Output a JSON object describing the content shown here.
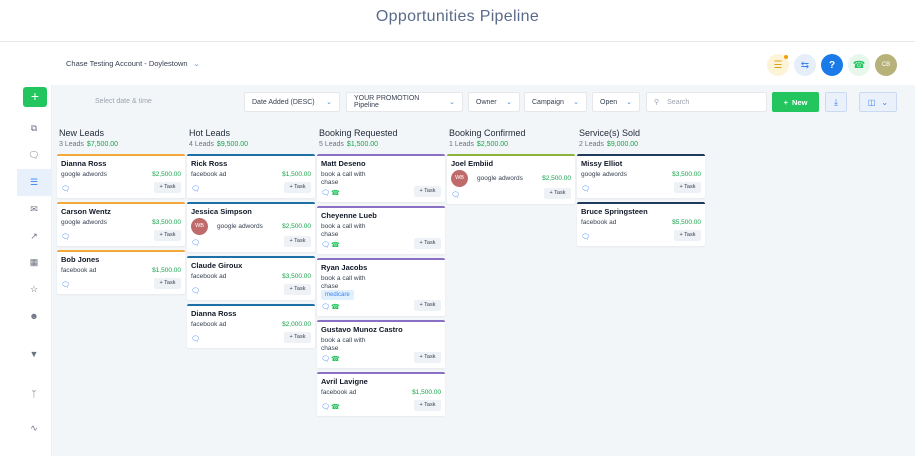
{
  "page_title": "Opportunities Pipeline",
  "account": "Chase Testing Account - Doylestown",
  "header_icons": [
    "list-icon",
    "sync-icon",
    "help-icon",
    "phone-icon"
  ],
  "user_initials": "CB",
  "colors": {
    "accent": "#22c55e",
    "link": "#3b82f6",
    "value": "#16a34a",
    "card_new": "#f2a93b",
    "card_hot": "#1f6fa7",
    "card_booking": "#8a70c4",
    "card_confirmed": "#8fb33a",
    "card_sold": "#1f3b5c"
  },
  "filters": {
    "date_placeholder": "Select date & time",
    "sort": "Date Added (DESC)",
    "pipeline": "YOUR PROMOTION Pipeline",
    "owner": "Owner",
    "campaign": "Campaign",
    "status": "Open",
    "search_placeholder": "Search",
    "new_label": "New"
  },
  "columns": [
    {
      "title": "New Leads",
      "leads": "3 Leads",
      "amount": "$7,500.00",
      "cards": [
        {
          "name": "Dianna Ross",
          "source": "google adwords",
          "value": "$2,500.00",
          "phone": false
        },
        {
          "name": "Carson Wentz",
          "source": "google adwords",
          "value": "$3,500.00",
          "phone": false
        },
        {
          "name": "Bob Jones",
          "source": "facebook ad",
          "value": "$1,500.00",
          "phone": false
        }
      ]
    },
    {
      "title": "Hot Leads",
      "leads": "4 Leads",
      "amount": "$9,500.00",
      "cards": [
        {
          "name": "Rick Ross",
          "source": "facebook ad",
          "value": "$1,500.00",
          "phone": false
        },
        {
          "name": "Jessica Simpson",
          "source": "google adwords",
          "value": "$2,500.00",
          "avatar": "WB",
          "phone": false
        },
        {
          "name": "Claude Giroux",
          "source": "facebook ad",
          "value": "$3,500.00",
          "phone": false
        },
        {
          "name": "Dianna Ross",
          "source": "facebook ad",
          "value": "$2,000.00",
          "phone": false
        }
      ]
    },
    {
      "title": "Booking Requested",
      "leads": "5 Leads",
      "amount": "$1,500.00",
      "cards": [
        {
          "name": "Matt Deseno",
          "source": "book a call with chase",
          "value": "",
          "phone": true
        },
        {
          "name": "Cheyenne Lueb",
          "source": "book a call with chase",
          "value": "",
          "phone": true
        },
        {
          "name": "Ryan Jacobs",
          "source": "book a call with chase",
          "value": "",
          "tag": "medicare",
          "phone": true
        },
        {
          "name": "Gustavo Munoz Castro",
          "source": "book a call with chase",
          "value": "",
          "phone": true
        },
        {
          "name": "Avril Lavigne",
          "source": "facebook ad",
          "value": "$1,500.00",
          "phone": true
        }
      ]
    },
    {
      "title": "Booking Confirmed",
      "leads": "1 Leads",
      "amount": "$2,500.00",
      "cards": [
        {
          "name": "Joel Embiid",
          "source": "google adwords",
          "value": "$2,500.00",
          "avatar": "WB",
          "phone": false
        }
      ]
    },
    {
      "title": "Service(s) Sold",
      "leads": "2 Leads",
      "amount": "$9,000.00",
      "cards": [
        {
          "name": "Missy Elliot",
          "source": "google adwords",
          "value": "$3,500.00",
          "phone": false
        },
        {
          "name": "Bruce Springsteen",
          "source": "facebook ad",
          "value": "$5,500.00",
          "phone": false
        }
      ]
    }
  ],
  "task_label": "+ Task"
}
